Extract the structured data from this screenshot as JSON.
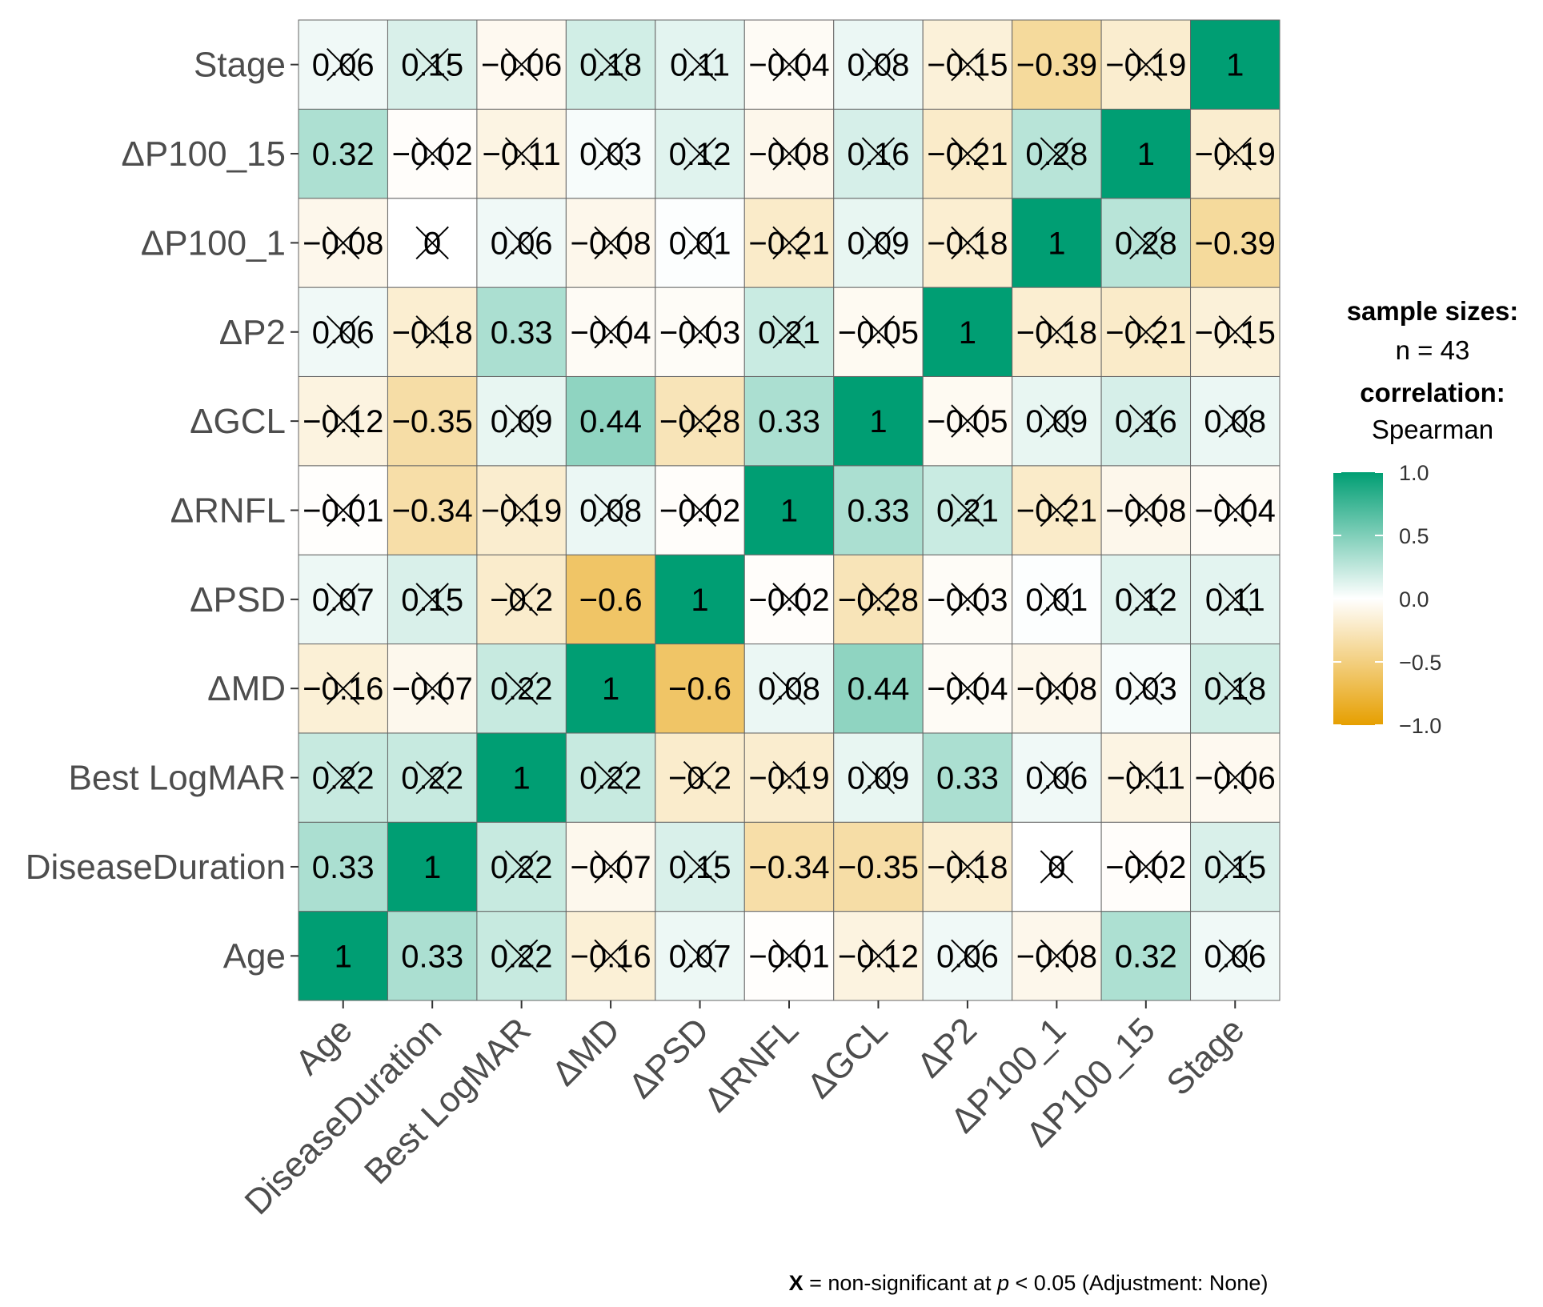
{
  "chart_data": {
    "type": "heatmap",
    "title": "",
    "variables": [
      "Age",
      "DiseaseDuration",
      "Best LogMAR",
      "ΔMD",
      "ΔPSD",
      "ΔRNFL",
      "ΔGCL",
      "ΔP2",
      "ΔP100_1",
      "ΔP100_15",
      "Stage"
    ],
    "matrix": [
      [
        1,
        0.33,
        0.22,
        -0.16,
        0.07,
        -0.01,
        -0.12,
        0.06,
        -0.08,
        0.32,
        0.06
      ],
      [
        0.33,
        1,
        0.22,
        -0.07,
        0.15,
        -0.34,
        -0.35,
        -0.18,
        0,
        -0.02,
        0.15
      ],
      [
        0.22,
        0.22,
        1,
        0.22,
        -0.2,
        -0.19,
        0.09,
        0.33,
        0.06,
        -0.11,
        -0.06
      ],
      [
        -0.16,
        -0.07,
        0.22,
        1,
        -0.6,
        0.08,
        0.44,
        -0.04,
        -0.08,
        0.03,
        0.18
      ],
      [
        0.07,
        0.15,
        -0.2,
        -0.6,
        1,
        -0.02,
        -0.28,
        -0.03,
        0.01,
        0.12,
        0.11
      ],
      [
        -0.01,
        -0.34,
        -0.19,
        0.08,
        -0.02,
        1,
        0.33,
        0.21,
        -0.21,
        -0.08,
        -0.04
      ],
      [
        -0.12,
        -0.35,
        0.09,
        0.44,
        -0.28,
        0.33,
        1,
        -0.05,
        0.09,
        0.16,
        0.08
      ],
      [
        0.06,
        -0.18,
        0.33,
        -0.04,
        -0.03,
        0.21,
        -0.05,
        1,
        -0.18,
        -0.21,
        -0.15
      ],
      [
        -0.08,
        0,
        0.06,
        -0.08,
        0.01,
        -0.21,
        0.09,
        -0.18,
        1,
        0.28,
        -0.39
      ],
      [
        0.32,
        -0.02,
        -0.11,
        0.03,
        0.12,
        -0.08,
        0.16,
        -0.21,
        0.28,
        1,
        -0.19
      ],
      [
        0.06,
        0.15,
        -0.06,
        0.18,
        0.11,
        -0.04,
        0.08,
        -0.15,
        -0.39,
        -0.19,
        1
      ]
    ],
    "significance_rule": "non-significant cells (|r| < 0.30 here) are crossed out",
    "legend": {
      "sample_title": "sample sizes:",
      "sample_value": "n = 43",
      "corr_title": "correlation:",
      "corr_value": "Spearman",
      "ticks": [
        "1.0",
        "0.5",
        "0.0",
        "−0.5",
        "−1.0"
      ],
      "tick_values": [
        1,
        0.5,
        0,
        -0.5,
        -1
      ],
      "placement": "right"
    },
    "colors": {
      "low": "#E69F00",
      "mid": "#FFFFFF",
      "high": "#009E73"
    },
    "footer": {
      "symbol": "X",
      "text": " = non-significant at ",
      "p": "p",
      "rest": " < 0.05 (Adjustment: None)"
    }
  }
}
